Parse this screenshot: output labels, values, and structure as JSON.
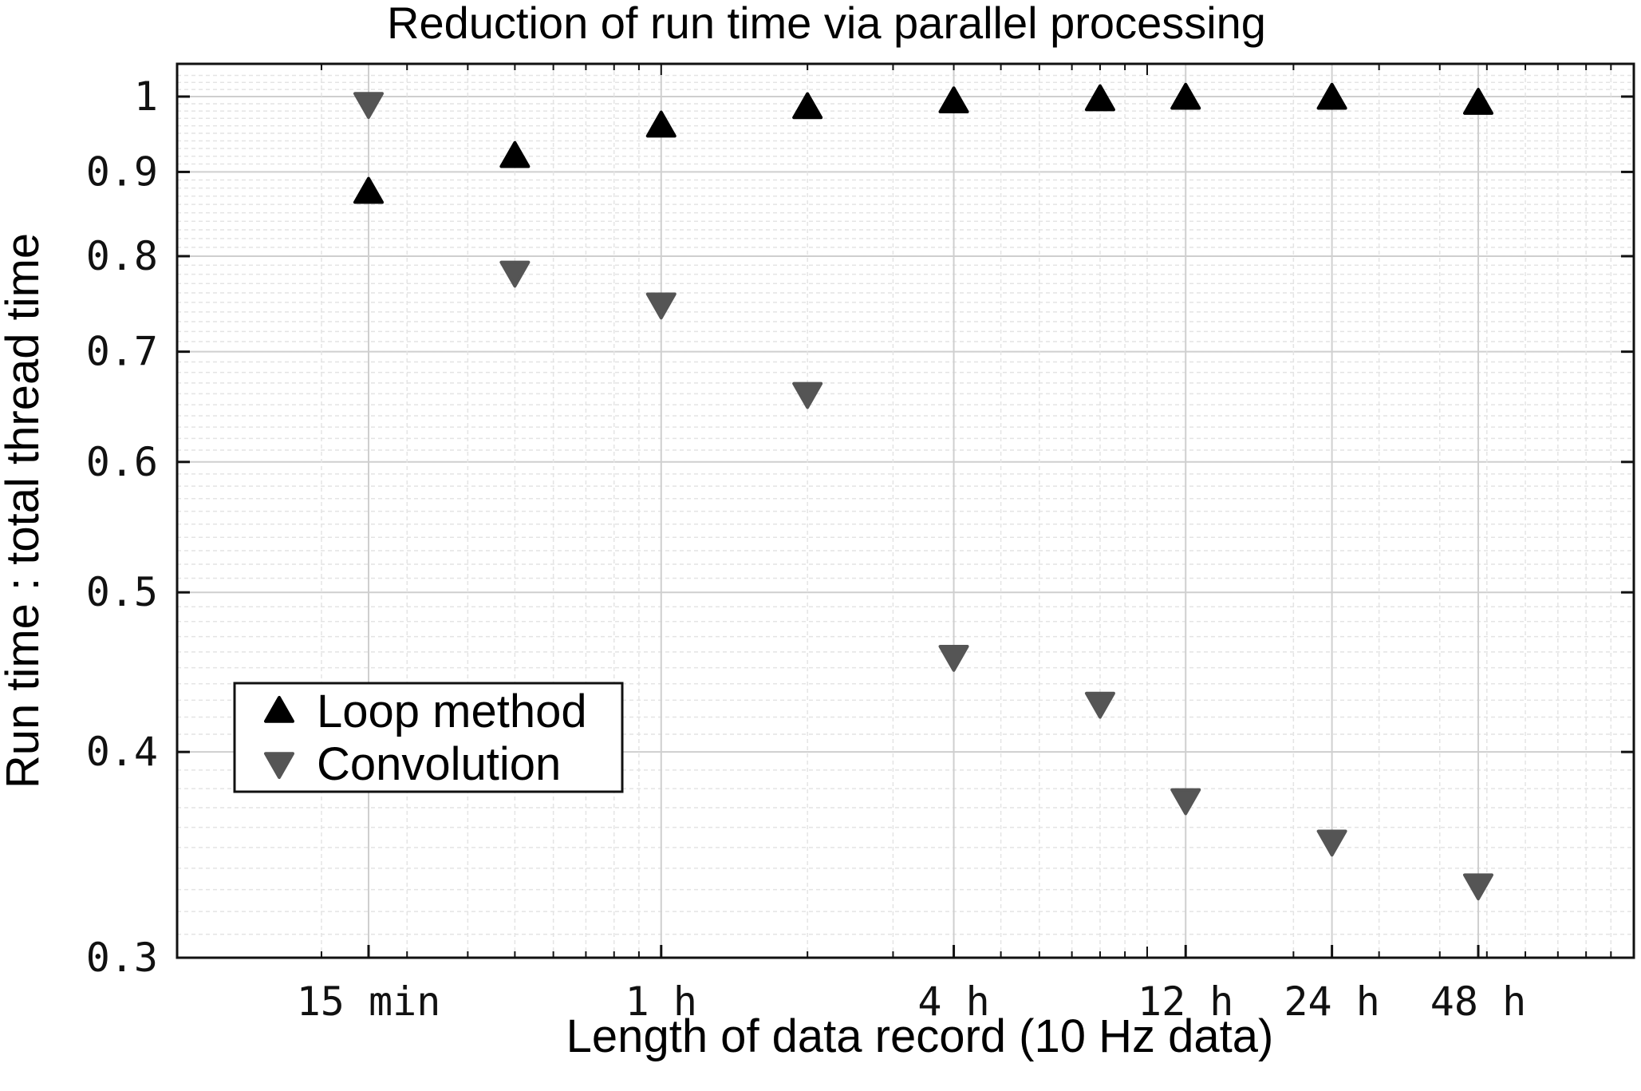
{
  "chart_data": {
    "type": "scatter",
    "title": "Reduction of run time via parallel processing",
    "xlabel": "Length of data record (10 Hz data)",
    "ylabel": "Run time : total thread time",
    "x_scale": "log",
    "y_scale": "log",
    "xlim_hours": [
      0.1,
      120
    ],
    "ylim": [
      0.3,
      1.04
    ],
    "grid": true,
    "legend_position": "lower-left",
    "x_ticks": [
      {
        "hours": 0.25,
        "label": "15 min"
      },
      {
        "hours": 1,
        "label": "1 h"
      },
      {
        "hours": 4,
        "label": "4 h"
      },
      {
        "hours": 12,
        "label": "12 h"
      },
      {
        "hours": 24,
        "label": "24 h"
      },
      {
        "hours": 48,
        "label": "48 h"
      }
    ],
    "y_ticks": [
      {
        "value": 0.3,
        "label": "0.3"
      },
      {
        "value": 0.4,
        "label": "0.4"
      },
      {
        "value": 0.5,
        "label": "0.5"
      },
      {
        "value": 0.6,
        "label": "0.6"
      },
      {
        "value": 0.7,
        "label": "0.7"
      },
      {
        "value": 0.8,
        "label": "0.8"
      },
      {
        "value": 0.9,
        "label": "0.9"
      },
      {
        "value": 1,
        "label": "1"
      }
    ],
    "series": [
      {
        "name": "Loop method",
        "marker": "triangle-up",
        "color": "#000000",
        "x_hours": [
          0.25,
          0.5,
          1,
          2,
          4,
          8,
          12,
          24,
          48
        ],
        "y": [
          0.875,
          0.92,
          0.96,
          0.985,
          0.993,
          0.996,
          0.998,
          0.998,
          0.991
        ]
      },
      {
        "name": "Convolution",
        "marker": "triangle-down",
        "color": "#555555",
        "x_hours": [
          0.25,
          0.5,
          1,
          2,
          4,
          8,
          12,
          24,
          48
        ],
        "y": [
          0.99,
          0.782,
          0.748,
          0.66,
          0.457,
          0.428,
          0.374,
          0.353,
          0.332
        ]
      }
    ]
  }
}
